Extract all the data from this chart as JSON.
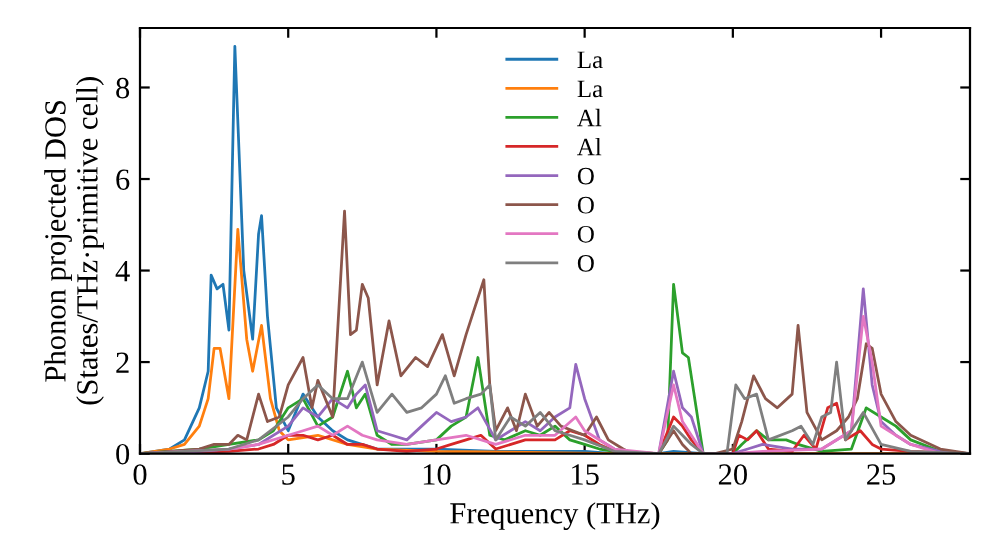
{
  "chart_data": {
    "type": "line",
    "xlabel": "Frequency (THz)",
    "ylabel": "Phonon projected DOS\n(States/THz·primitive cell)",
    "xlim": [
      0,
      28
    ],
    "xticks": [
      0,
      5,
      10,
      15,
      20,
      25
    ],
    "ylim": [
      0,
      9.3
    ],
    "yticks": [
      0,
      2,
      4,
      6,
      8
    ],
    "grid": false,
    "legend": "top",
    "marker": "none",
    "line_style": "solid",
    "series": [
      {
        "name": "La",
        "color": "#1f77b4",
        "x": [
          0,
          1,
          1.5,
          2,
          2.3,
          2.4,
          2.6,
          2.8,
          3.0,
          3.2,
          3.5,
          3.8,
          4.0,
          4.1,
          4.3,
          4.6,
          5,
          5.5,
          6,
          6.5,
          7,
          8,
          10,
          12,
          15,
          16,
          17.5,
          18,
          19,
          28
        ],
        "values": [
          0,
          0.1,
          0.3,
          1.0,
          1.8,
          3.9,
          3.6,
          3.7,
          2.7,
          8.9,
          4.0,
          2.5,
          4.8,
          5.2,
          3.0,
          1.0,
          0.5,
          1.3,
          0.8,
          0.5,
          0.3,
          0.1,
          0.1,
          0.05,
          0.05,
          0,
          0,
          0.05,
          0,
          0
        ]
      },
      {
        "name": "La",
        "color": "#ff7f0e",
        "x": [
          0,
          1,
          1.5,
          2,
          2.3,
          2.5,
          2.7,
          3.0,
          3.3,
          3.6,
          3.8,
          4.1,
          4.4,
          4.7,
          5,
          6,
          7,
          8,
          10,
          16,
          28
        ],
        "values": [
          0,
          0.1,
          0.2,
          0.6,
          1.2,
          2.3,
          2.3,
          1.2,
          4.9,
          2.5,
          1.8,
          2.8,
          1.2,
          0.5,
          0.3,
          0.4,
          0.2,
          0.1,
          0.05,
          0,
          0
        ]
      },
      {
        "name": "Al",
        "color": "#2ca02c",
        "x": [
          0,
          2,
          3,
          4,
          4.5,
          5,
          5.5,
          6,
          6.5,
          7,
          7.3,
          7.6,
          8,
          8.5,
          9,
          10,
          10.5,
          11,
          11.4,
          11.8,
          12.3,
          13,
          13.5,
          14,
          14.5,
          15,
          15.5,
          16,
          17.5,
          17.8,
          18,
          18.3,
          18.5,
          19,
          20,
          20.3,
          20.8,
          21.2,
          21.8,
          22.2,
          23,
          24,
          24.5,
          25,
          25.5,
          26,
          27,
          28
        ],
        "values": [
          0,
          0.1,
          0.2,
          0.3,
          0.5,
          1.0,
          1.2,
          0.6,
          0.8,
          1.8,
          1.0,
          1.3,
          0.4,
          0.2,
          0.2,
          0.3,
          0.6,
          0.8,
          2.1,
          0.4,
          0.3,
          0.5,
          0.4,
          0.6,
          0.3,
          0.2,
          0.1,
          0.05,
          0,
          0.3,
          3.7,
          2.2,
          2.1,
          0,
          0,
          0.2,
          0.5,
          0.3,
          0.3,
          0.2,
          0.05,
          0.1,
          1.0,
          0.8,
          0.6,
          0.3,
          0.05,
          0
        ]
      },
      {
        "name": "Al",
        "color": "#d62728",
        "x": [
          0,
          3,
          4,
          4.5,
          5,
          5.5,
          6,
          6.5,
          7,
          7.5,
          8,
          9,
          10,
          10.5,
          11,
          11.5,
          12,
          13,
          14,
          14.5,
          15,
          15.5,
          16,
          17.5,
          18,
          18.3,
          18.6,
          19,
          20,
          20.2,
          20.5,
          20.8,
          21.2,
          22,
          22.4,
          22.8,
          23.2,
          23.5,
          23.8,
          24.3,
          24.7,
          25,
          26,
          28
        ],
        "values": [
          0,
          0.05,
          0.1,
          0.2,
          0.4,
          0.4,
          0.3,
          0.4,
          0.2,
          0.2,
          0.1,
          0.05,
          0.1,
          0.2,
          0.3,
          0.4,
          0.1,
          0.3,
          0.3,
          0.5,
          0.4,
          0.2,
          0.05,
          0,
          0.8,
          0.6,
          0.3,
          0,
          0,
          0.4,
          0.3,
          0.5,
          0.1,
          0.05,
          0.4,
          0.1,
          1.0,
          1.1,
          0.3,
          0.5,
          0.2,
          0.1,
          0.05,
          0
        ]
      },
      {
        "name": "O",
        "color": "#9467bd",
        "x": [
          0,
          2,
          3,
          4,
          5,
          5.5,
          6,
          6.5,
          7,
          7.3,
          7.6,
          8,
          8.5,
          9,
          9.5,
          10,
          10.5,
          11,
          11.4,
          12,
          12.5,
          13,
          13.5,
          14,
          14.5,
          14.7,
          15,
          15.5,
          16,
          16.5,
          17.5,
          18,
          18.3,
          18.6,
          19,
          20,
          20.5,
          21,
          22,
          23,
          24,
          24.4,
          24.7,
          25,
          25.5,
          26,
          27,
          28
        ],
        "values": [
          0,
          0.05,
          0.1,
          0.2,
          0.6,
          1.0,
          0.8,
          1.2,
          1.0,
          1.3,
          1.5,
          0.5,
          0.4,
          0.3,
          0.6,
          0.9,
          0.7,
          0.8,
          1.0,
          0.3,
          0.5,
          0.7,
          0.5,
          0.8,
          1.0,
          1.95,
          1.2,
          0.3,
          0.1,
          0,
          0,
          1.8,
          1.0,
          0.8,
          0,
          0,
          0.1,
          0.2,
          0.1,
          0.1,
          0.5,
          3.6,
          1.5,
          0.7,
          0.4,
          0.2,
          0.05,
          0
        ]
      },
      {
        "name": "O",
        "color": "#8c564b",
        "x": [
          0,
          2,
          2.5,
          3,
          3.3,
          3.6,
          4,
          4.3,
          4.7,
          5,
          5.5,
          5.8,
          6,
          6.5,
          6.9,
          7.1,
          7.3,
          7.5,
          7.7,
          8,
          8.4,
          8.8,
          9.3,
          9.7,
          10.2,
          10.6,
          11,
          11.3,
          11.6,
          11.8,
          12,
          12.4,
          12.7,
          13,
          13.4,
          13.8,
          14.2,
          14.6,
          15,
          15.4,
          15.8,
          16.3,
          16.6,
          17.5,
          18,
          18.3,
          18.6,
          19.4,
          20,
          20.3,
          20.7,
          21.1,
          21.5,
          22,
          22.2,
          22.5,
          23,
          23.5,
          23.9,
          24.2,
          24.5,
          24.7,
          25,
          25.5,
          26,
          27,
          28
        ],
        "values": [
          0,
          0.1,
          0.2,
          0.2,
          0.4,
          0.3,
          1.3,
          0.7,
          0.8,
          1.5,
          2.1,
          1.0,
          1.6,
          0.8,
          5.3,
          2.6,
          2.7,
          3.7,
          3.4,
          1.5,
          2.9,
          1.7,
          2.1,
          1.9,
          2.6,
          1.7,
          2.6,
          3.2,
          3.8,
          1.5,
          0.5,
          1.0,
          0.5,
          1.3,
          0.6,
          0.9,
          0.6,
          0.5,
          0.4,
          0.8,
          0.3,
          0.1,
          0,
          0,
          0.5,
          0.2,
          0,
          0,
          0.1,
          0.7,
          1.7,
          1.2,
          1.0,
          1.3,
          2.8,
          0.9,
          0.3,
          0.5,
          0.8,
          1.2,
          2.4,
          2.3,
          1.3,
          0.7,
          0.4,
          0.1,
          0
        ]
      },
      {
        "name": "O",
        "color": "#e377c2",
        "x": [
          0,
          3,
          4,
          5,
          5.5,
          6,
          6.5,
          7,
          7.5,
          8,
          9,
          10,
          11,
          12,
          13,
          14,
          14.7,
          15,
          16,
          17.5,
          18,
          18.3,
          18.6,
          19,
          20,
          21,
          23,
          24,
          24.4,
          24.7,
          25,
          26,
          27,
          28
        ],
        "values": [
          0,
          0.1,
          0.2,
          0.4,
          0.5,
          0.6,
          0.4,
          0.6,
          0.4,
          0.3,
          0.2,
          0.3,
          0.4,
          0.2,
          0.4,
          0.4,
          0.8,
          0.5,
          0.1,
          0,
          1.5,
          0.7,
          0.4,
          0,
          0,
          0.05,
          0.1,
          0.5,
          3.0,
          2.0,
          0.6,
          0.2,
          0,
          0
        ]
      },
      {
        "name": "O",
        "color": "#7f7f7f",
        "x": [
          0,
          3,
          4,
          5,
          5.5,
          6,
          6.5,
          7,
          7.5,
          8,
          8.5,
          9,
          9.5,
          10,
          10.3,
          10.6,
          11,
          11.5,
          11.8,
          12,
          12.5,
          13,
          13.5,
          14,
          14.5,
          15,
          16,
          17.5,
          18,
          18.3,
          18.6,
          19,
          19.8,
          20.1,
          20.4,
          20.8,
          21.2,
          22,
          22.3,
          22.7,
          23,
          23.3,
          23.5,
          23.8,
          24.4,
          25,
          26,
          28
        ],
        "values": [
          0,
          0.1,
          0.3,
          0.8,
          1.2,
          1.5,
          1.2,
          1.2,
          2.0,
          0.9,
          1.3,
          0.9,
          1.0,
          1.3,
          1.7,
          1.1,
          1.2,
          1.3,
          1.5,
          0.3,
          0.8,
          0.6,
          0.9,
          0.5,
          0.4,
          0.3,
          0.05,
          0,
          0.6,
          0.4,
          0.2,
          0,
          0,
          1.5,
          1.2,
          1.3,
          0.3,
          0.5,
          0.6,
          0.2,
          0.8,
          0.9,
          2.0,
          0.3,
          0.9,
          0.2,
          0.05,
          0
        ]
      }
    ]
  }
}
